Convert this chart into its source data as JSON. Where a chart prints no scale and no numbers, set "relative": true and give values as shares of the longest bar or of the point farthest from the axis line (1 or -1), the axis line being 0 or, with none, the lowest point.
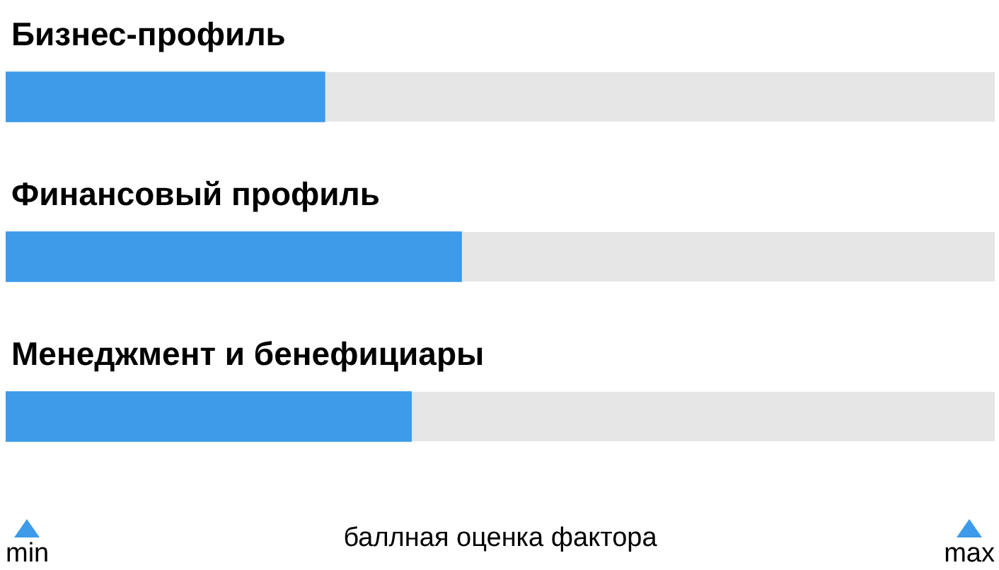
{
  "chart_data": {
    "type": "bar",
    "orientation": "horizontal",
    "relative": true,
    "categories": [
      "Бизнес-профиль",
      "Финансовый профиль",
      "Менеджмент и бенефициары"
    ],
    "values": [
      0.7,
      1,
      0.89
    ],
    "color": "#3d9be9",
    "bands": [
      {
        "axis": "x",
        "from": 0,
        "to": 2.17,
        "color": "#e6e6e6"
      }
    ],
    "annotations": [
      "min",
      "max"
    ],
    "xlabel": "баллная оценка фактора",
    "legend": false
  }
}
